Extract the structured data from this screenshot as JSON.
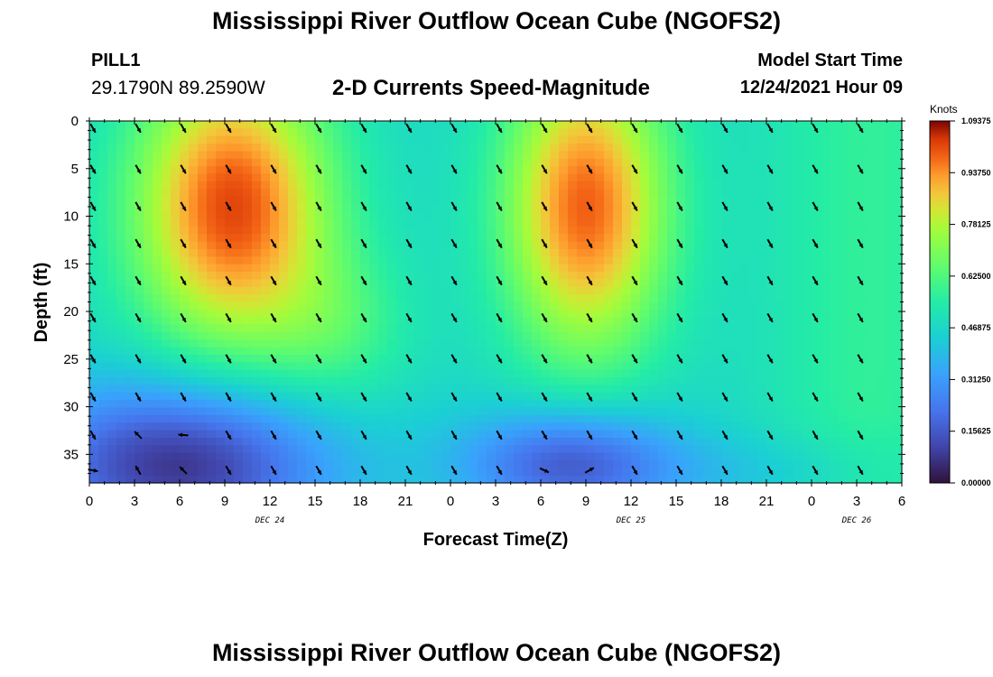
{
  "header": {
    "title": "Mississippi River Outflow Ocean Cube (NGOFS2)",
    "station": "PILL1",
    "coordinates": "29.1790N  89.2590W",
    "subtitle": "2-D Currents Speed-Magnitude",
    "model_start_label": "Model Start Time",
    "model_start_value": "12/24/2021 Hour 09"
  },
  "footer": {
    "title": "Mississippi River Outflow Ocean Cube (NGOFS2)"
  },
  "chart_data": {
    "type": "heatmap",
    "title": "2-D Currents Speed-Magnitude",
    "xlabel": "Forecast Time(Z)",
    "ylabel": "Depth (ft)",
    "x_hours_range": [
      0,
      54
    ],
    "x_tick_labels": [
      "0",
      "3",
      "6",
      "9",
      "12",
      "15",
      "18",
      "21",
      "0",
      "3",
      "6",
      "9",
      "12",
      "15",
      "18",
      "21",
      "0",
      "3",
      "6"
    ],
    "day_labels": [
      {
        "label": "DEC 24",
        "hour": 12
      },
      {
        "label": "DEC 25",
        "hour": 36
      },
      {
        "label": "DEC 26",
        "hour": 51
      }
    ],
    "ylim": [
      0,
      38
    ],
    "y_ticks": [
      0,
      5,
      10,
      15,
      20,
      25,
      30,
      35
    ],
    "colorbar": {
      "units": "Knots",
      "range": [
        0,
        1.09375
      ],
      "tick_labels": [
        "1.09375",
        "0.93750",
        "0.78125",
        "0.62500",
        "0.46875",
        "0.31250",
        "0.15625",
        "0.00000"
      ]
    },
    "speed_peaks_knots": [
      {
        "hour": 9,
        "depth_ft": 7,
        "value": 1.09
      },
      {
        "hour": 33,
        "depth_ft": 10,
        "value": 1.05
      }
    ],
    "speed_minima_knots": [
      {
        "hour": 7,
        "depth_ft": 36,
        "value": 0.05
      },
      {
        "hour": 32,
        "depth_ft": 34,
        "value": 0.12
      }
    ],
    "arrow_depths_ft": [
      0.3,
      4.6,
      8.5,
      12.4,
      16.3,
      20.2,
      24.5,
      28.5,
      32.5,
      36.2
    ],
    "arrow_hours": [
      0,
      3,
      6,
      9,
      12,
      15,
      18,
      21,
      24,
      27,
      30,
      33,
      36,
      39,
      42,
      45,
      48,
      51
    ],
    "arrow_directions_deg_note": "directions in degrees clockwise from north; typical flow toward SE",
    "special_arrows": [
      {
        "hour": 0,
        "depth_ft": 36.2,
        "dir": 100
      },
      {
        "hour": 3,
        "depth_ft": 32.5,
        "dir": 315
      },
      {
        "hour": 3,
        "depth_ft": 36.2,
        "dir": 330
      },
      {
        "hour": 6,
        "depth_ft": 32.5,
        "dir": 275
      },
      {
        "hour": 6,
        "depth_ft": 36.2,
        "dir": 315
      },
      {
        "hour": 30,
        "depth_ft": 36.2,
        "dir": 115
      },
      {
        "hour": 33,
        "depth_ft": 36.2,
        "dir": 60
      }
    ]
  }
}
